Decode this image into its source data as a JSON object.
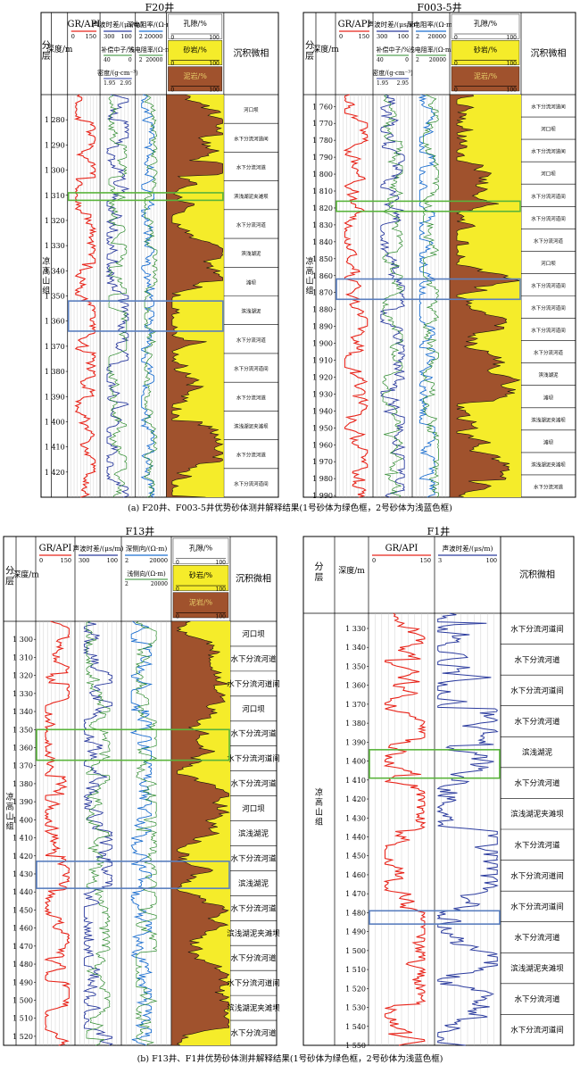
{
  "top_caption": "(a) F20井、F003-5井优势砂体测井解释结果(1号砂体为绿色框，2号砂体为浅蓝色框)",
  "bottom_caption": "(b) F13井、F1井优势砂体测井解释结果(1号砂体为绿色框，2号砂体为浅蓝色框)",
  "colors": {
    "sand": "#f5ec2a",
    "mud": "#a0522d",
    "gr": "#e8241a",
    "ac": "#2b3b9e",
    "den": "#1c6fd0",
    "cnl": "#2e8b2e",
    "box1": "#5ab43c",
    "box2": "#5a7fbf",
    "grid": "#bdbdbd"
  },
  "panels": [
    {
      "title": "F20井",
      "layer_label": "分层",
      "depth_label": "深度/m",
      "formation": "凉高山组",
      "facies_label": "沉积微相",
      "curve_headers": [
        {
          "label": "GR/API",
          "scale": [
            "0",
            "150"
          ]
        },
        {
          "label": "声波时差/(μs/m)",
          "scale": [
            "300",
            "100"
          ],
          "sub1": "补偿中子/%",
          "sub1_scale": [
            "40",
            "0"
          ],
          "sub2": "密度/(g·cm⁻³)",
          "sub2_scale": [
            "1.95",
            "2.95"
          ]
        },
        {
          "label": "深电阻率/(Ω·m)",
          "scale": [
            "2",
            "20000"
          ],
          "sub1": "浅电阻率/(Ω·m)",
          "sub1_scale": [
            "2",
            "20000"
          ]
        },
        {
          "label": "孔隙/%",
          "scale": [
            "0",
            "100"
          ],
          "sub1": "砂岩/%",
          "sub1_scale": [
            "0",
            "100"
          ],
          "sub2": "泥岩/%",
          "sub2_scale": [
            "0",
            "100"
          ]
        }
      ],
      "depth_ticks": [
        "1 280",
        "1 290",
        "1 300",
        "1 310",
        "1 320",
        "1 330",
        "1 340",
        "1 350",
        "1 360",
        "1 370",
        "1 380",
        "1 390",
        "1 400",
        "1 410",
        "1 420"
      ],
      "depth_range": [
        1270,
        1430
      ],
      "facies": [
        "河口坝",
        "水下分流河道间",
        "水下分流河道",
        "滨浅湖泥夹滩坝",
        "水下分流河道",
        "滨浅湖泥",
        "滩坝",
        "滨浅湖泥",
        "水下分流河道",
        "水下分流河道间",
        "水下分流河道",
        "滨浅湖泥夹滩坝",
        "水下分流河道",
        "水下分流河道间"
      ],
      "sand1": [
        1309,
        1312
      ],
      "sand2": [
        1352,
        1364
      ]
    },
    {
      "title": "F003-5井",
      "layer_label": "分层",
      "depth_label": "深度/m",
      "formation": "凉高山组",
      "facies_label": "沉积微相",
      "curve_headers": [
        {
          "label": "GR/API",
          "scale": [
            "0",
            "150"
          ]
        },
        {
          "label": "声波时差/(μs/m)",
          "scale": [
            "300",
            "100"
          ],
          "sub1": "补偿中子/%",
          "sub1_scale": [
            "40",
            "0"
          ],
          "sub2": "密度/(g·cm⁻³)",
          "sub2_scale": [
            "1.95",
            "2.95"
          ]
        },
        {
          "label": "深电阻率/(Ω·m)",
          "scale": [
            "2",
            "20000"
          ],
          "sub1": "浅电阻率/(Ω·m)",
          "sub1_scale": [
            "2",
            "20000"
          ]
        },
        {
          "label": "孔隙/%",
          "scale": [
            "0",
            "100"
          ],
          "sub1": "砂岩/%",
          "sub1_scale": [
            "0",
            "100"
          ],
          "sub2": "泥岩/%",
          "sub2_scale": [
            "0",
            "100"
          ]
        }
      ],
      "depth_ticks": [
        "1 760",
        "1 770",
        "1 780",
        "1 790",
        "1 800",
        "1 810",
        "1 820",
        "1 830",
        "1 840",
        "1 850",
        "1 860",
        "1 870",
        "1 880",
        "1 890",
        "1 900",
        "1 910",
        "1 920",
        "1 930",
        "1 940",
        "1 950",
        "1 960",
        "1 970",
        "1 980",
        "1 990"
      ],
      "depth_range": [
        1753,
        1991
      ],
      "facies": [
        "水下分流河道间",
        "河口坝",
        "水下分流河道间",
        "河口坝",
        "水下分流河道间",
        "水下分流河道间",
        "水下分流河道",
        "河口坝",
        "水下分流河道间",
        "水下分流河道间",
        "水下分流河道间",
        "水下分流河道",
        "滨浅湖泥",
        "滩坝",
        "滨浅湖泥夹滩坝",
        "滩坝",
        "滨浅湖泥夹滩坝",
        "水下分流河道"
      ],
      "sand1": [
        1816,
        1822
      ],
      "sand2": [
        1862,
        1874
      ]
    },
    {
      "title": "F13井",
      "layer_label": "分层",
      "depth_label": "深度/m",
      "formation": "凉高山组",
      "facies_label": "沉积微相",
      "curve_headers": [
        {
          "label": "GR/API",
          "scale": [
            "0",
            "150"
          ]
        },
        {
          "label": "声波时差/(μs/m)",
          "scale": [
            "300",
            "100"
          ]
        },
        {
          "label": "深侧向/(Ω·m)",
          "scale": [
            "2",
            "20000"
          ],
          "sub1": "浅侧向/(Ω·m)",
          "sub1_scale": [
            "2",
            "20000"
          ]
        },
        {
          "label": "孔隙/%",
          "scale": [
            "0",
            "100"
          ],
          "sub1": "砂岩/%",
          "sub1_scale": [
            "0",
            "100"
          ],
          "sub2": "泥岩/%",
          "sub2_scale": [
            "0",
            "100"
          ]
        }
      ],
      "depth_ticks": [
        "1 300",
        "1 310",
        "1 320",
        "1 330",
        "1 340",
        "1 350",
        "1 360",
        "1 370",
        "1 380",
        "1 390",
        "1 400",
        "1 410",
        "1 420",
        "1 430",
        "1 440",
        "1 450",
        "1 460",
        "1 470",
        "1 480",
        "1 490",
        "1 500",
        "1 510",
        "1 520"
      ],
      "depth_range": [
        1290,
        1525
      ],
      "facies": [
        "河口坝",
        "水下分流河道",
        "水下分流河道间",
        "河口坝",
        "水下分流河道",
        "水下分流河道间",
        "水下分流河道",
        "河口坝",
        "滨浅湖泥",
        "水下分流河道",
        "滨浅湖泥",
        "水下分流河道",
        "滨浅湖泥夹滩坝",
        "水下分流河道",
        "水下分流河道间",
        "滨浅湖泥夹滩坝",
        "水下分流河道"
      ],
      "sand1": [
        1350,
        1367
      ],
      "sand2": [
        1423,
        1438
      ]
    },
    {
      "title": "F1井",
      "layer_label": "分层",
      "depth_label": "深度/m",
      "formation": "凉高山组",
      "facies_label": "沉积微相",
      "curve_headers": [
        {
          "label": "GR/API",
          "scale": [
            "0",
            "150"
          ]
        },
        {
          "label": "声波时差/(μs/m)",
          "scale": [
            "3",
            "100"
          ]
        }
      ],
      "depth_ticks": [
        "1 330",
        "1 340",
        "1 350",
        "1 360",
        "1 370",
        "1 380",
        "1 390",
        "1 400",
        "1 410",
        "1 420",
        "1 430",
        "1 440",
        "1 450",
        "1 460",
        "1 470",
        "1 480",
        "1 490",
        "1 500",
        "1 510",
        "1 520",
        "1 530",
        "1 540",
        "1 550"
      ],
      "depth_range": [
        1322,
        1550
      ],
      "facies": [
        "水下分流河道间",
        "水下分流河道",
        "水下分流河道间",
        "水下分流河道",
        "滨浅湖泥",
        "水下分流河道",
        "滨浅湖泥夹滩坝",
        "水下分流河道",
        "水下分流河道间",
        "水下分流河道间",
        "水下分流河道",
        "滨浅湖泥夹滩坝",
        "水下分流河道",
        "水下分流河道间"
      ],
      "sand1": [
        1394,
        1409
      ],
      "sand2": [
        1479,
        1486
      ]
    }
  ]
}
